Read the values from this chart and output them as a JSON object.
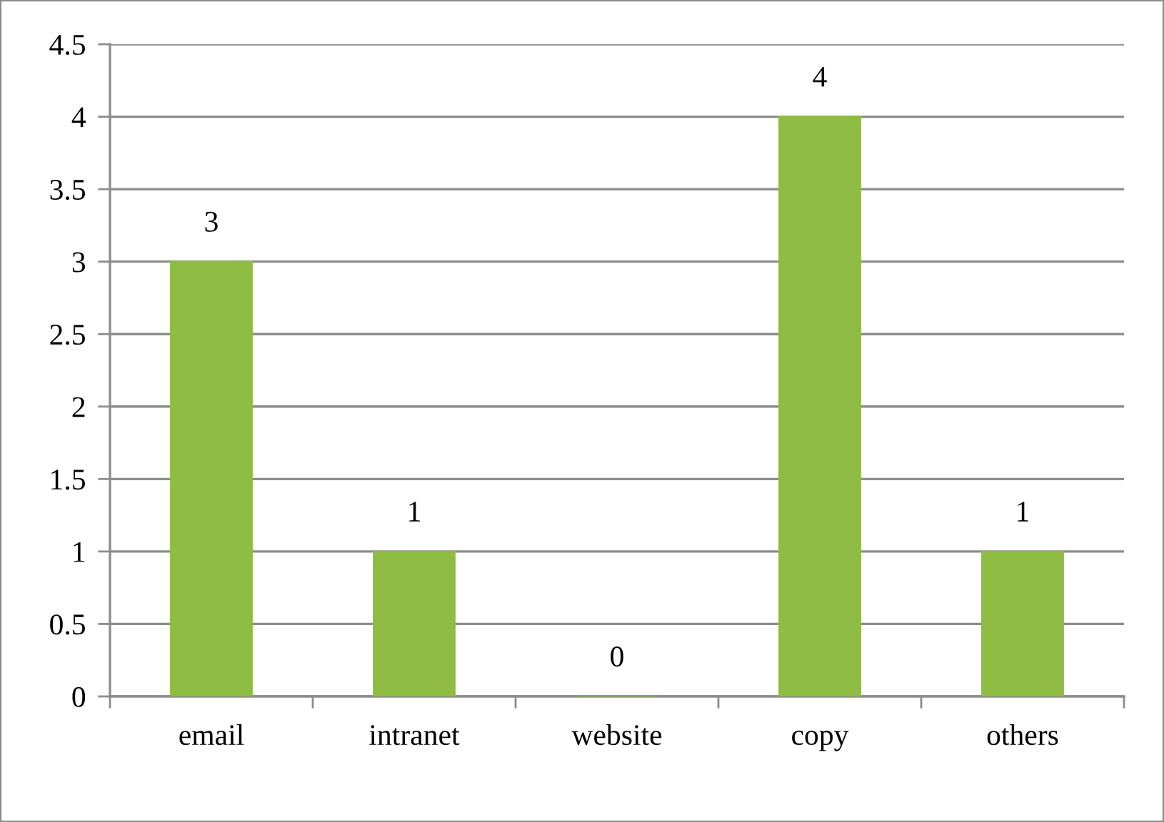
{
  "chart_data": {
    "type": "bar",
    "categories": [
      "email",
      "intranet",
      "website",
      "copy",
      "others"
    ],
    "values": [
      3,
      1,
      0,
      4,
      1
    ],
    "color": "#8fbc43",
    "ylim": [
      0,
      4.5
    ],
    "yticks": [
      0,
      0.5,
      1,
      1.5,
      2,
      2.5,
      3,
      3.5,
      4,
      4.5
    ],
    "grid": "y",
    "data_labels": true
  }
}
